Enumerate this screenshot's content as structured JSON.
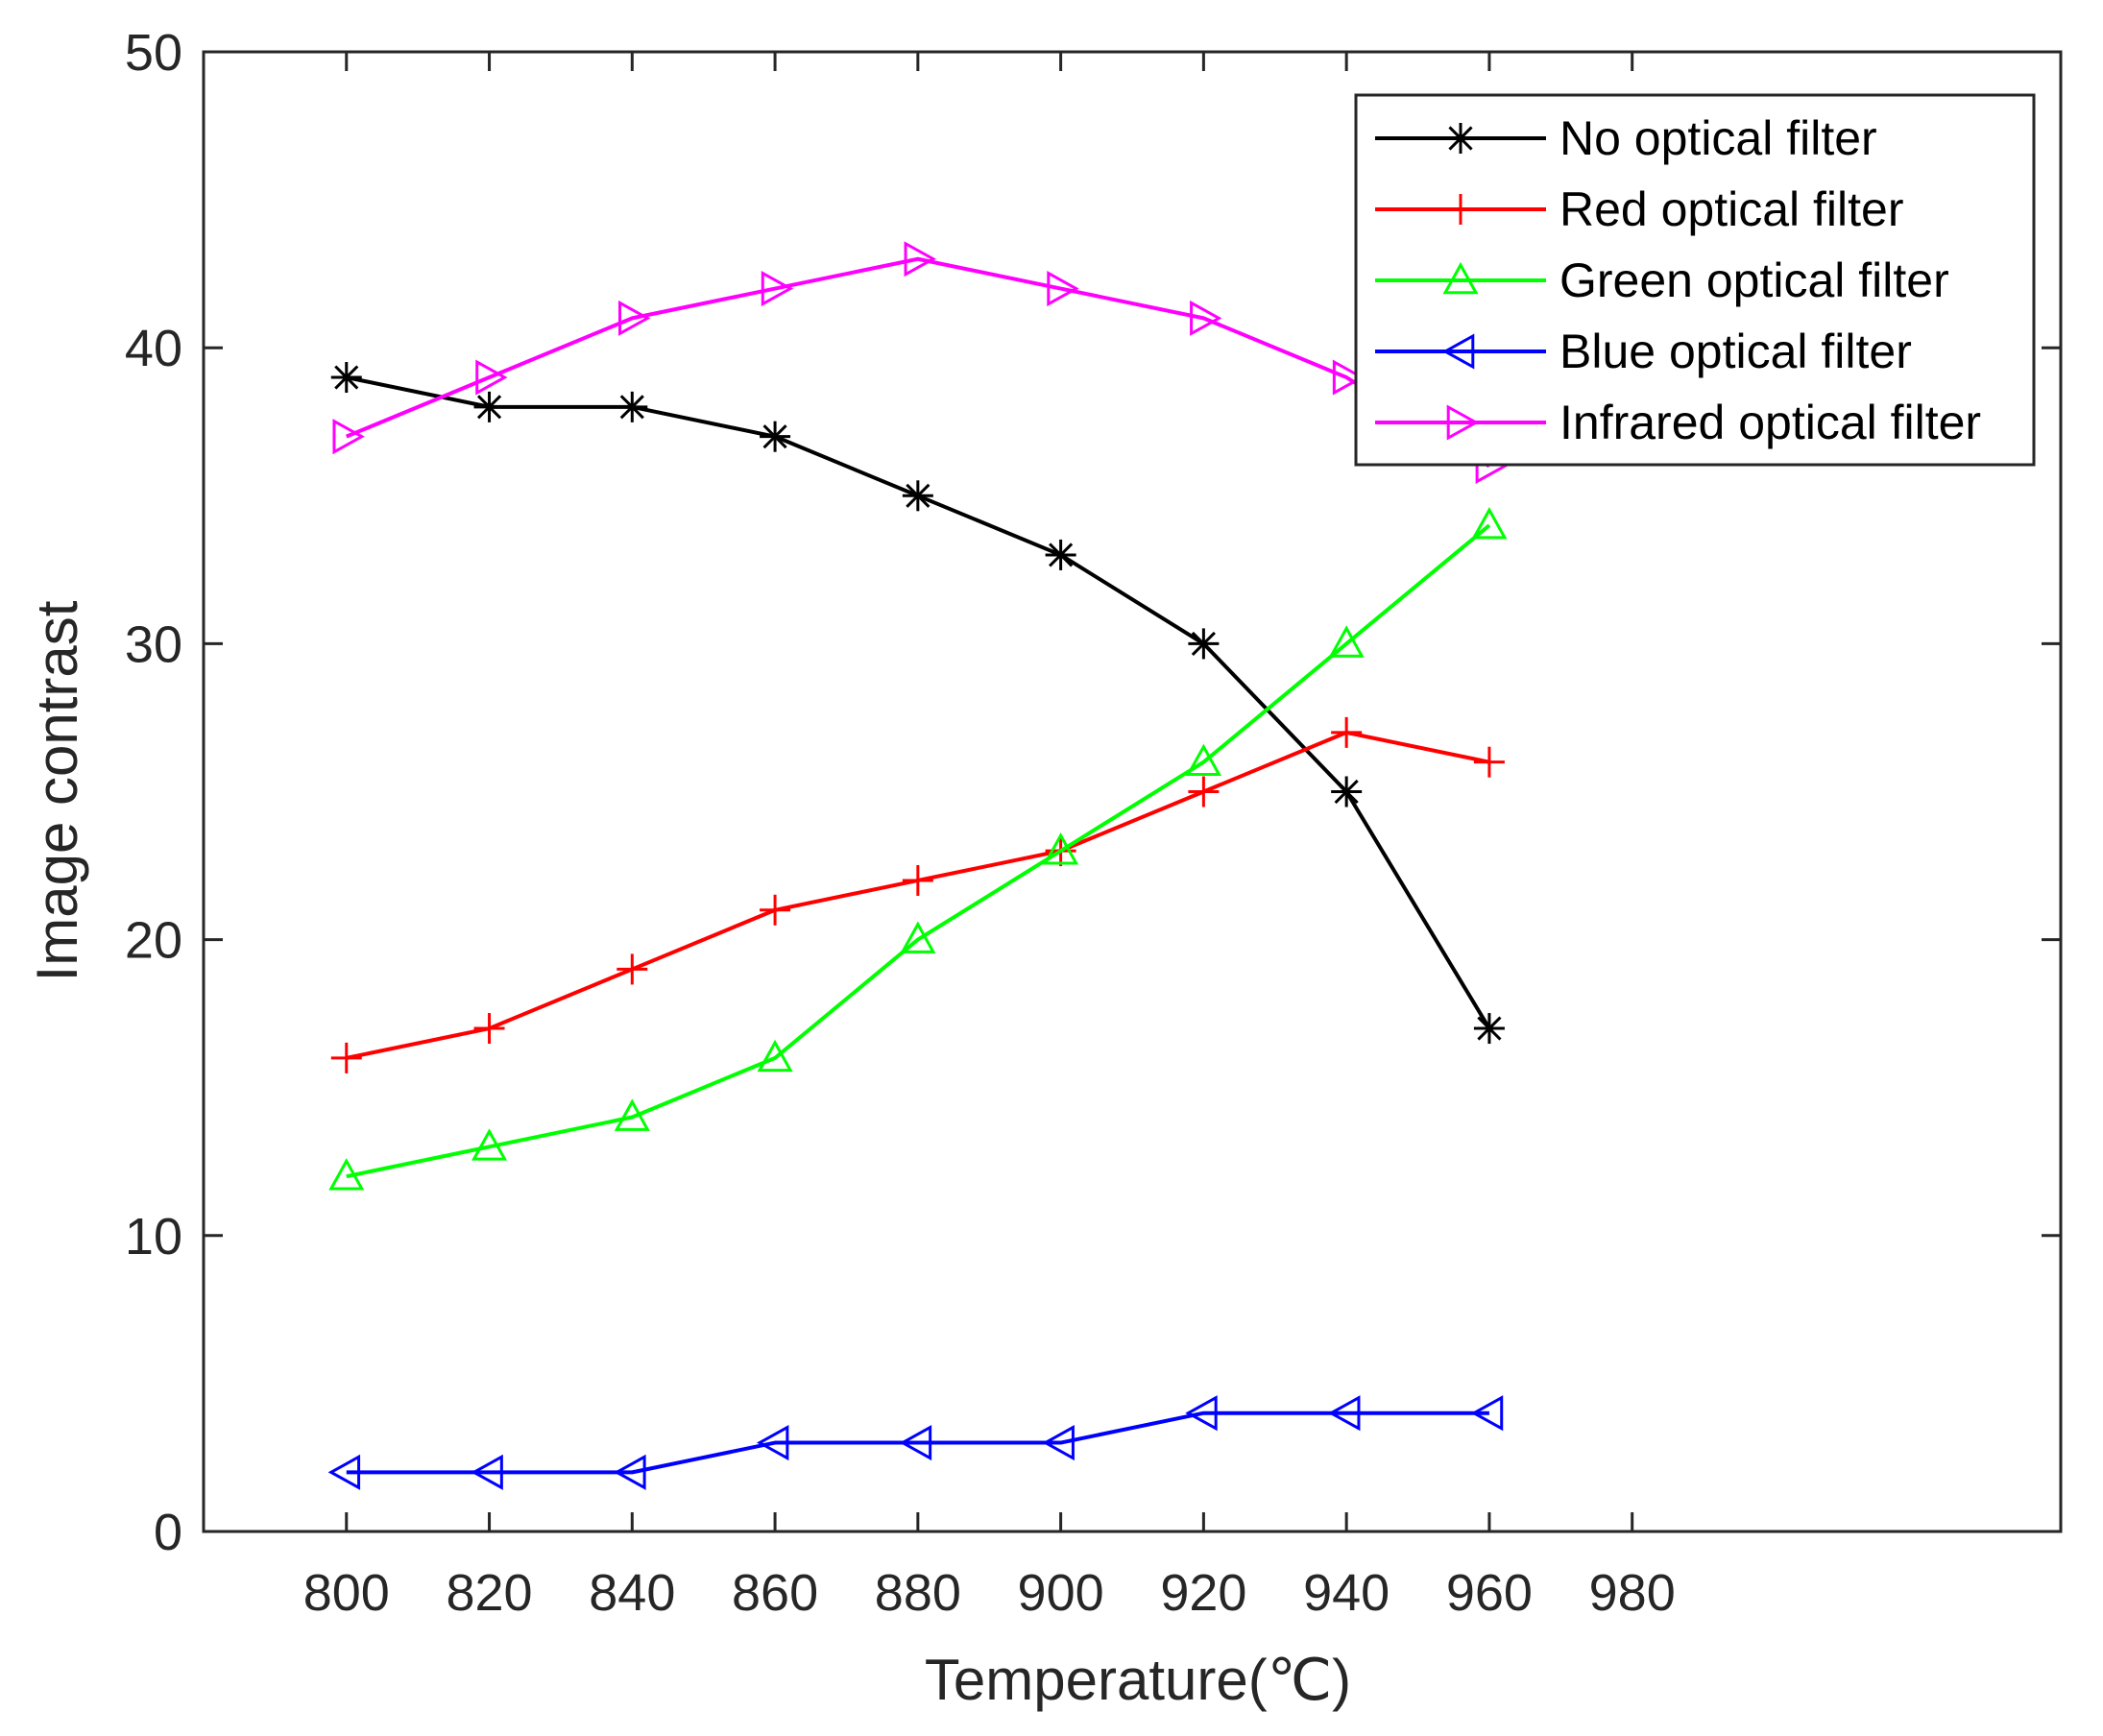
{
  "chart_data": {
    "type": "line",
    "title": "",
    "xlabel": "Temperature(℃)",
    "ylabel": "Image contrast",
    "xlim": [
      780,
      1040
    ],
    "ylim": [
      0,
      50
    ],
    "xticks": [
      800,
      820,
      840,
      860,
      880,
      900,
      920,
      940,
      960,
      980
    ],
    "yticks": [
      0,
      10,
      20,
      30,
      40,
      50
    ],
    "grid": false,
    "legend_position": "top-right",
    "x": [
      800,
      820,
      840,
      860,
      880,
      900,
      920,
      940,
      960
    ],
    "series": [
      {
        "name": "No optical filter",
        "color": "#000000",
        "marker": "asterisk",
        "values": [
          39,
          38,
          38,
          37,
          35,
          33,
          30,
          25,
          17
        ]
      },
      {
        "name": "Red optical filter",
        "color": "#ff0000",
        "marker": "plus",
        "values": [
          16,
          17,
          19,
          21,
          22,
          23,
          25,
          27,
          26
        ]
      },
      {
        "name": "Green optical filter",
        "color": "#00ff00",
        "marker": "triangle-up",
        "values": [
          12,
          13,
          14,
          16,
          20,
          23,
          26,
          30,
          34
        ]
      },
      {
        "name": "Blue optical filter",
        "color": "#0000ff",
        "marker": "triangle-left",
        "values": [
          2,
          2,
          2,
          3,
          3,
          3,
          4,
          4,
          4
        ]
      },
      {
        "name": "Infrared optical filter",
        "color": "#ff00ff",
        "marker": "triangle-right",
        "values": [
          37,
          39,
          41,
          42,
          43,
          42,
          41,
          39,
          36
        ]
      }
    ]
  }
}
